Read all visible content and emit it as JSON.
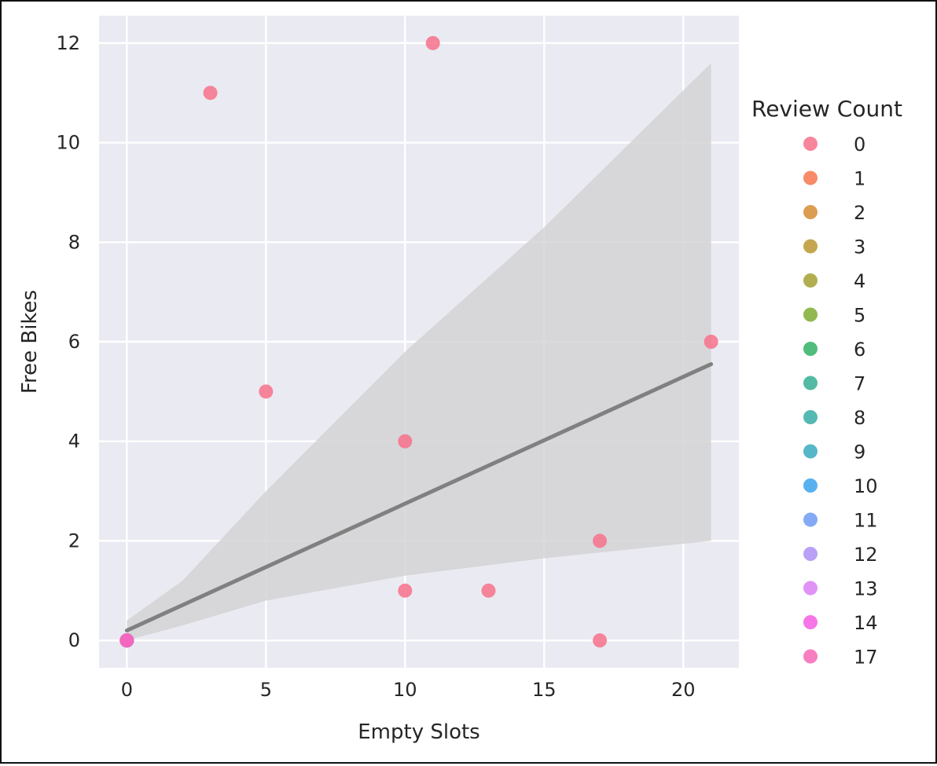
{
  "chart_data": {
    "type": "scatter",
    "xlabel": "Empty Slots",
    "ylabel": "Free Bikes",
    "xlim": [
      -1,
      22
    ],
    "ylim": [
      -0.55,
      12.55
    ],
    "x_ticks": [
      0,
      5,
      10,
      15,
      20
    ],
    "y_ticks": [
      0,
      2,
      4,
      6,
      8,
      10,
      12
    ],
    "grid": true,
    "legend": {
      "title": "Review Count",
      "placement": "right",
      "entries": [
        {
          "label": "0",
          "color": "#f77189"
        },
        {
          "label": "1",
          "color": "#f7754f"
        },
        {
          "label": "2",
          "color": "#d58c32"
        },
        {
          "label": "3",
          "color": "#bb9832"
        },
        {
          "label": "4",
          "color": "#a4a031"
        },
        {
          "label": "5",
          "color": "#7eab32"
        },
        {
          "label": "6",
          "color": "#32b166"
        },
        {
          "label": "7",
          "color": "#35ae93"
        },
        {
          "label": "8",
          "color": "#36ada4"
        },
        {
          "label": "9",
          "color": "#38aabe"
        },
        {
          "label": "10",
          "color": "#3ba3ec"
        },
        {
          "label": "11",
          "color": "#6e9bf4"
        },
        {
          "label": "12",
          "color": "#ae8ff4"
        },
        {
          "label": "13",
          "color": "#dc7ff4"
        },
        {
          "label": "14",
          "color": "#f45ee3"
        },
        {
          "label": "17",
          "color": "#f667b6"
        }
      ]
    },
    "points": [
      {
        "x": 3,
        "y": 11,
        "review_count": "0"
      },
      {
        "x": 11,
        "y": 12,
        "review_count": "0"
      },
      {
        "x": 5,
        "y": 5,
        "review_count": "0"
      },
      {
        "x": 10,
        "y": 4,
        "review_count": "0"
      },
      {
        "x": 21,
        "y": 6,
        "review_count": "0"
      },
      {
        "x": 17,
        "y": 2,
        "review_count": "0"
      },
      {
        "x": 10,
        "y": 1,
        "review_count": "0"
      },
      {
        "x": 13,
        "y": 1,
        "review_count": "0"
      },
      {
        "x": 17,
        "y": 0,
        "review_count": "0"
      },
      {
        "x": 0,
        "y": 0,
        "review_count": "1"
      },
      {
        "x": 0,
        "y": 0,
        "review_count": "2"
      },
      {
        "x": 0,
        "y": 0,
        "review_count": "3"
      },
      {
        "x": 0,
        "y": 0,
        "review_count": "4"
      },
      {
        "x": 0,
        "y": 0,
        "review_count": "5"
      },
      {
        "x": 0,
        "y": 0,
        "review_count": "6"
      },
      {
        "x": 0,
        "y": 0,
        "review_count": "7"
      },
      {
        "x": 0,
        "y": 0,
        "review_count": "8"
      },
      {
        "x": 0,
        "y": 0,
        "review_count": "9"
      },
      {
        "x": 0,
        "y": 0,
        "review_count": "10"
      },
      {
        "x": 0,
        "y": 0,
        "review_count": "11"
      },
      {
        "x": 0,
        "y": 0,
        "review_count": "12"
      },
      {
        "x": 0,
        "y": 0,
        "review_count": "13"
      },
      {
        "x": 0,
        "y": 0,
        "review_count": "14"
      },
      {
        "x": 0,
        "y": 0,
        "review_count": "17"
      }
    ],
    "regression_line": {
      "x": [
        0,
        21
      ],
      "y": [
        0.2,
        5.55
      ],
      "color": "#808080"
    },
    "confidence_band": {
      "x": [
        0,
        2,
        5,
        10,
        15,
        21
      ],
      "upper": [
        0.4,
        1.2,
        3.0,
        5.8,
        8.3,
        11.6
      ],
      "lower": [
        0.0,
        0.3,
        0.8,
        1.3,
        1.65,
        2.0
      ],
      "color": "#d3d3d6"
    },
    "colors": {
      "plot_background": "#eaeaf2",
      "grid": "#ffffff"
    }
  }
}
